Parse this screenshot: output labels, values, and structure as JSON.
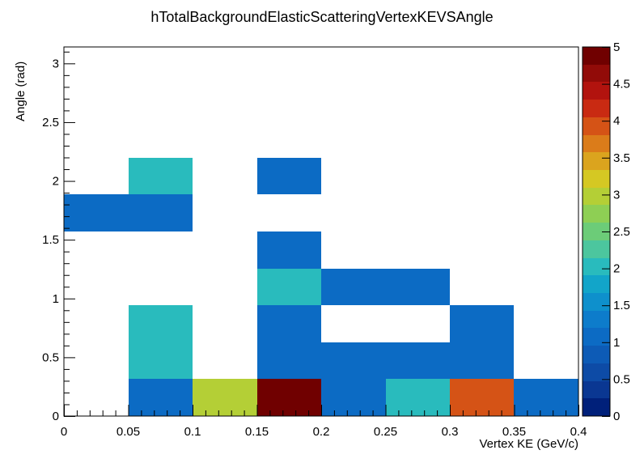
{
  "chart_data": {
    "type": "heatmap",
    "title": "hTotalBackgroundElasticScatteringVertexKEVSAngle",
    "xlabel": "Vertex KE (GeV/c)",
    "ylabel": "Angle (rad)",
    "xlim": [
      0,
      0.4
    ],
    "ylim": [
      0,
      3.14
    ],
    "x_bin_width": 0.05,
    "y_bin_width": 0.314,
    "x_tick_labels": [
      "0",
      "0.05",
      "0.1",
      "0.15",
      "0.2",
      "0.25",
      "0.3",
      "0.35",
      "0.4"
    ],
    "y_tick_labels": [
      "0",
      "0.5",
      "1",
      "1.5",
      "2",
      "2.5",
      "3"
    ],
    "zlim": [
      0,
      5
    ],
    "z_tick_labels": [
      "0",
      "0.5",
      "1",
      "1.5",
      "2",
      "2.5",
      "3",
      "3.5",
      "4",
      "4.5",
      "5"
    ],
    "palette": [
      "#00207a",
      "#0a3792",
      "#0d4ba6",
      "#0d5bb6",
      "#0c6bc4",
      "#0d7ccb",
      "#0e90cc",
      "#12a5c9",
      "#29bbbd",
      "#4cc69e",
      "#6ccc78",
      "#8ecf54",
      "#b4cf36",
      "#d5c823",
      "#dba41e",
      "#db7c1a",
      "#d55316",
      "#c92a12",
      "#b2130e",
      "#920b08",
      "#700000"
    ],
    "cells": [
      {
        "x": [
          0.0,
          0.05
        ],
        "y": [
          1.57,
          1.884
        ],
        "z": 1
      },
      {
        "x": [
          0.05,
          0.1
        ],
        "y": [
          1.57,
          1.884
        ],
        "z": 1
      },
      {
        "x": [
          0.05,
          0.1
        ],
        "y": [
          1.884,
          2.198
        ],
        "z": 2
      },
      {
        "x": [
          0.15,
          0.2
        ],
        "y": [
          1.884,
          2.198
        ],
        "z": 1
      },
      {
        "x": [
          0.15,
          0.2
        ],
        "y": [
          1.256,
          1.57
        ],
        "z": 1
      },
      {
        "x": [
          0.15,
          0.2
        ],
        "y": [
          0.942,
          1.256
        ],
        "z": 2
      },
      {
        "x": [
          0.2,
          0.25
        ],
        "y": [
          0.942,
          1.256
        ],
        "z": 1
      },
      {
        "x": [
          0.25,
          0.3
        ],
        "y": [
          0.942,
          1.256
        ],
        "z": 1
      },
      {
        "x": [
          0.05,
          0.1
        ],
        "y": [
          0.628,
          0.942
        ],
        "z": 2
      },
      {
        "x": [
          0.05,
          0.1
        ],
        "y": [
          0.314,
          0.628
        ],
        "z": 2
      },
      {
        "x": [
          0.15,
          0.2
        ],
        "y": [
          0.628,
          0.942
        ],
        "z": 1
      },
      {
        "x": [
          0.15,
          0.2
        ],
        "y": [
          0.314,
          0.628
        ],
        "z": 1
      },
      {
        "x": [
          0.2,
          0.25
        ],
        "y": [
          0.314,
          0.628
        ],
        "z": 1
      },
      {
        "x": [
          0.25,
          0.3
        ],
        "y": [
          0.314,
          0.628
        ],
        "z": 1
      },
      {
        "x": [
          0.3,
          0.35
        ],
        "y": [
          0.628,
          0.942
        ],
        "z": 1
      },
      {
        "x": [
          0.3,
          0.35
        ],
        "y": [
          0.314,
          0.628
        ],
        "z": 1
      },
      {
        "x": [
          0.05,
          0.1
        ],
        "y": [
          0.0,
          0.314
        ],
        "z": 1
      },
      {
        "x": [
          0.1,
          0.15
        ],
        "y": [
          0.0,
          0.314
        ],
        "z": 3
      },
      {
        "x": [
          0.15,
          0.2
        ],
        "y": [
          0.0,
          0.314
        ],
        "z": 5
      },
      {
        "x": [
          0.2,
          0.25
        ],
        "y": [
          0.0,
          0.314
        ],
        "z": 1
      },
      {
        "x": [
          0.25,
          0.3
        ],
        "y": [
          0.0,
          0.314
        ],
        "z": 2
      },
      {
        "x": [
          0.3,
          0.35
        ],
        "y": [
          0.0,
          0.314
        ],
        "z": 4
      },
      {
        "x": [
          0.35,
          0.4
        ],
        "y": [
          0.0,
          0.314
        ],
        "z": 1
      }
    ]
  }
}
